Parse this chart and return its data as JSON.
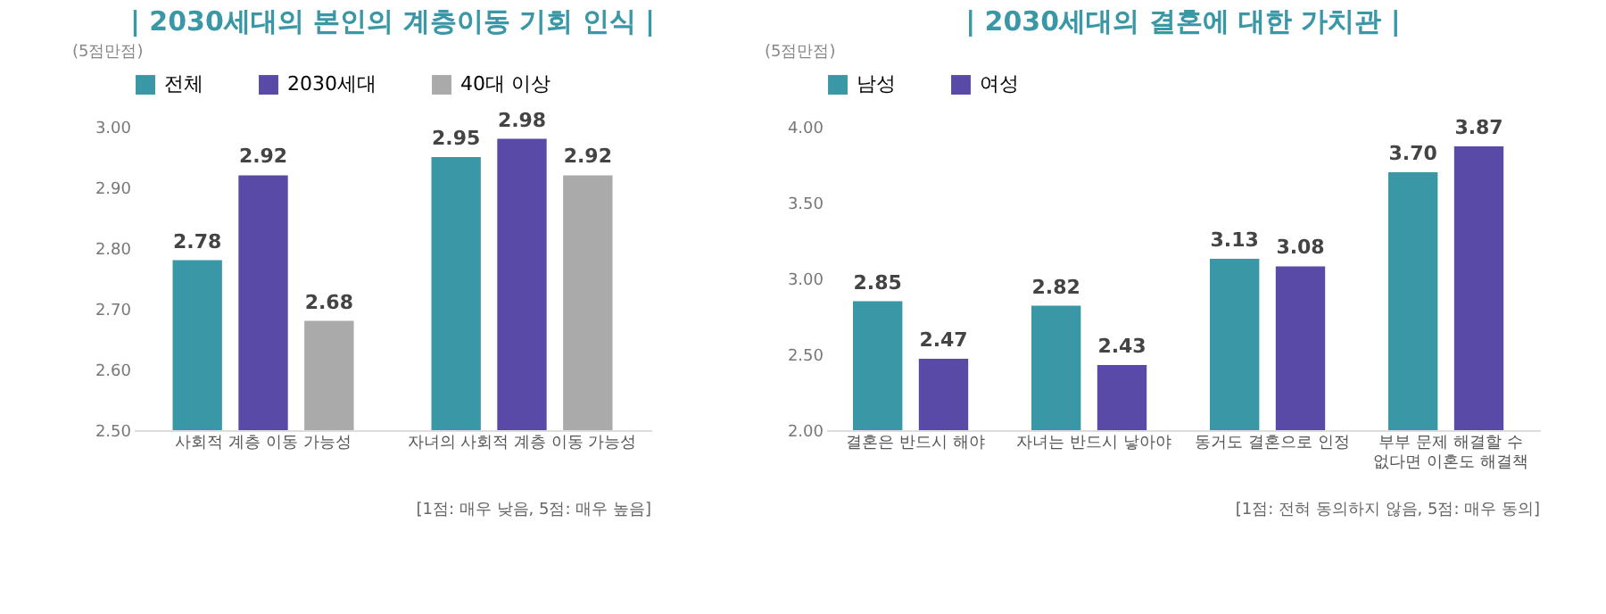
{
  "chart_data": [
    {
      "type": "bar",
      "title": "| 2030세대의 본인의 계층이동 기회 인식 |",
      "ylabel": "(5점만점)",
      "categories": [
        "사회적 계층 이동 가능성",
        "자녀의 사회적 계층 이동 가능성"
      ],
      "series": [
        {
          "name": "전체",
          "color": "#3a97a6",
          "values": [
            2.78,
            2.95
          ]
        },
        {
          "name": "2030세대",
          "color": "#5a4aa8",
          "values": [
            2.92,
            2.98
          ]
        },
        {
          "name": "40대 이상",
          "color": "#aaaaaa",
          "values": [
            2.68,
            2.92
          ]
        }
      ],
      "ylim": [
        2.5,
        3.0
      ],
      "yticks": [
        {
          "value": 2.5,
          "label": "2.50"
        },
        {
          "value": 2.6,
          "label": "2.60"
        },
        {
          "value": 2.7,
          "label": "2.70"
        },
        {
          "value": 2.8,
          "label": "2.80"
        },
        {
          "value": 2.9,
          "label": "2.90"
        },
        {
          "value": 3.0,
          "label": "3.00"
        }
      ],
      "data_labels": true,
      "grid": false,
      "legend": "top",
      "annotations": [
        "[1점: 매우 낮음, 5점: 매우 높음]"
      ]
    },
    {
      "type": "bar",
      "title": "| 2030세대의 결혼에 대한 가치관 |",
      "ylabel": "(5점만점)",
      "categories": [
        "결혼은 반드시 해야",
        "자녀는 반드시 낳아야",
        "동거도 결혼으로 인정",
        "부부 문제 해결할 수\n없다면 이혼도 해결책"
      ],
      "series": [
        {
          "name": "남성",
          "color": "#3a97a6",
          "values": [
            2.85,
            2.82,
            3.13,
            3.7
          ],
          "value_labels": [
            "2.85",
            "2.82",
            "3.13",
            "3.70"
          ]
        },
        {
          "name": "여성",
          "color": "#5a4aa8",
          "values": [
            2.47,
            2.43,
            3.08,
            3.87
          ]
        }
      ],
      "ylim": [
        2.0,
        4.0
      ],
      "yticks": [
        {
          "value": 2.0,
          "label": "2.00"
        },
        {
          "value": 2.5,
          "label": "2.50"
        },
        {
          "value": 3.0,
          "label": "3.00"
        },
        {
          "value": 3.5,
          "label": "3.50"
        },
        {
          "value": 4.0,
          "label": "4.00"
        }
      ],
      "data_labels": true,
      "grid": false,
      "legend": "top",
      "annotations": [
        "[1점: 전혀 동의하지 않음, 5점: 매우 동의]"
      ]
    }
  ]
}
